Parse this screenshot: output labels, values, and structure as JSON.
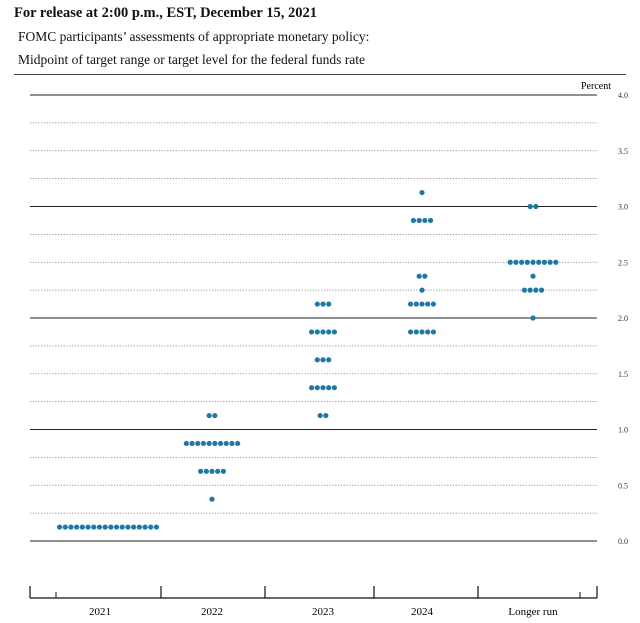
{
  "header": {
    "release": "For release at 2:00 p.m., EST, December 15, 2021",
    "subtitle": "FOMC participants’ assessments of appropriate monetary policy:",
    "title": "Midpoint of target range or target level for the federal funds rate"
  },
  "chart_data": {
    "type": "scatter",
    "title": "Midpoint of target range or target level for the federal funds rate",
    "ylabel": "Percent",
    "ylim": [
      0,
      4
    ],
    "yticks": [
      "0.0",
      "0.5",
      "1.0",
      "1.5",
      "2.0",
      "2.5",
      "3.0",
      "3.5",
      "4.0"
    ],
    "categories": [
      "2021",
      "2022",
      "2023",
      "2024",
      "Longer run"
    ],
    "grid": "horizontal every 0.25, solid at whole numbers",
    "dots": [
      {
        "category": "2021",
        "counts": [
          {
            "y": 0.125,
            "n": 18
          }
        ]
      },
      {
        "category": "2022",
        "counts": [
          {
            "y": 0.375,
            "n": 1
          },
          {
            "y": 0.625,
            "n": 5
          },
          {
            "y": 0.875,
            "n": 10
          },
          {
            "y": 1.125,
            "n": 2
          }
        ]
      },
      {
        "category": "2023",
        "counts": [
          {
            "y": 1.125,
            "n": 2
          },
          {
            "y": 1.375,
            "n": 5
          },
          {
            "y": 1.625,
            "n": 3
          },
          {
            "y": 1.875,
            "n": 5
          },
          {
            "y": 2.125,
            "n": 3
          }
        ]
      },
      {
        "category": "2024",
        "counts": [
          {
            "y": 1.875,
            "n": 5
          },
          {
            "y": 2.125,
            "n": 5
          },
          {
            "y": 2.25,
            "n": 1
          },
          {
            "y": 2.375,
            "n": 2
          },
          {
            "y": 2.875,
            "n": 4
          },
          {
            "y": 3.125,
            "n": 1
          }
        ]
      },
      {
        "category": "Longer run",
        "counts": [
          {
            "y": 2.0,
            "n": 1
          },
          {
            "y": 2.25,
            "n": 4
          },
          {
            "y": 2.375,
            "n": 1
          },
          {
            "y": 2.5,
            "n": 9
          },
          {
            "y": 3.0,
            "n": 2
          }
        ]
      }
    ],
    "dot_color": "#1f77a4"
  }
}
